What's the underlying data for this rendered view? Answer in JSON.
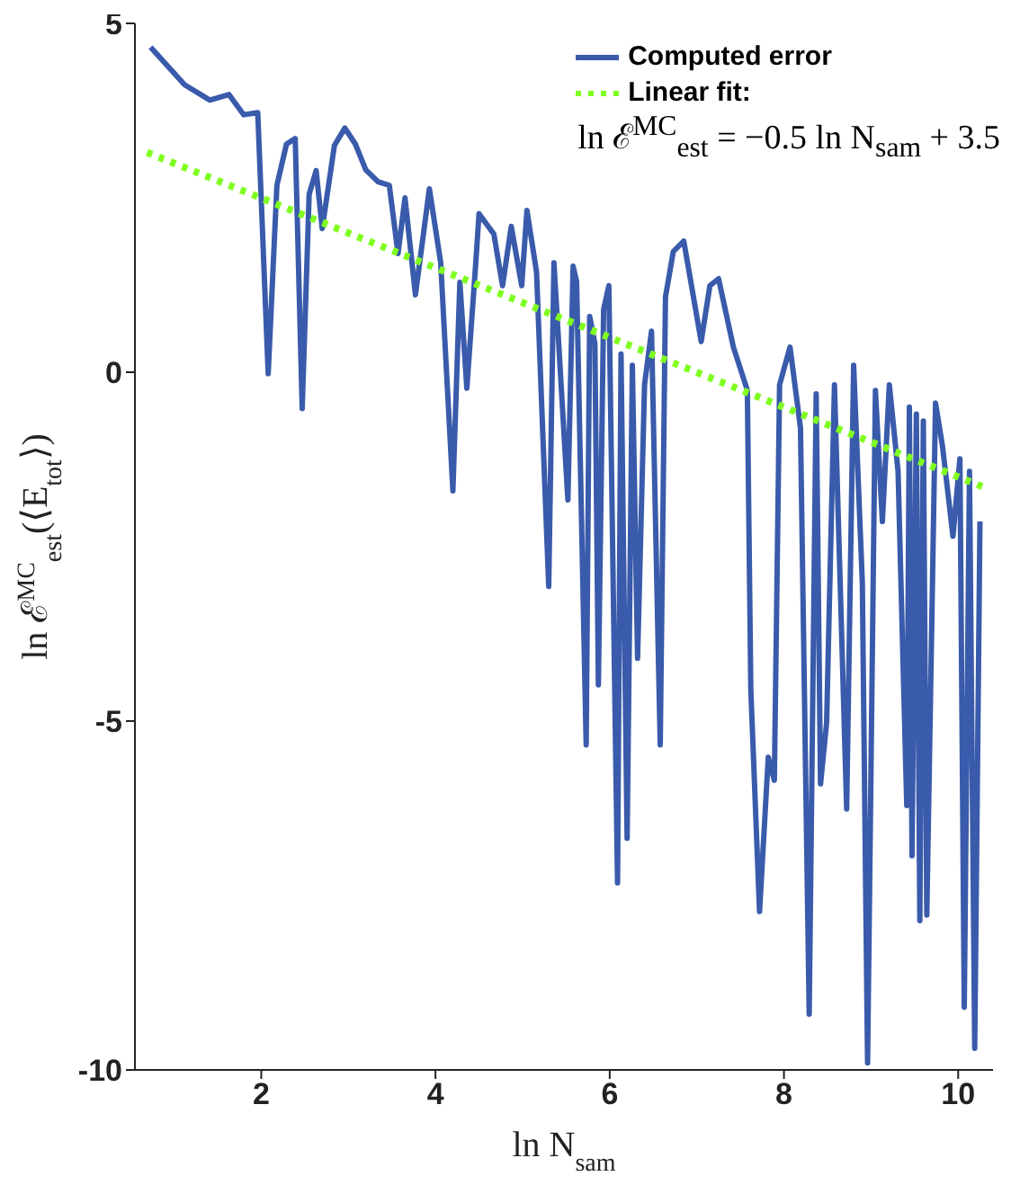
{
  "chart_data": {
    "type": "line",
    "xlabel": "ln N$_{sam}$",
    "ylabel": "ln ℰ$^{MC}$$_{est}$(⟨E$_{tot}$⟩)",
    "xlim": [
      0.55,
      10.4
    ],
    "xticks": [
      2,
      4,
      6,
      8,
      10
    ],
    "ylim": [
      -10,
      5
    ],
    "yticks": [
      -10,
      -5,
      0,
      5
    ],
    "legend": "top right",
    "marker": "none",
    "annotations": [
      "ln ℰ$^{MC}$$_{est}$ = −0.5 ln N$_{sam}$ + 3.5"
    ],
    "series": [
      {
        "name": "Computed error",
        "color": "#3a5bab",
        "line_style": "solid",
        "x": [
          0.73,
          1.12,
          1.41,
          1.63,
          1.8,
          1.96,
          2.08,
          2.18,
          2.29,
          2.39,
          2.47,
          2.55,
          2.63,
          2.7,
          2.8,
          2.84,
          2.96,
          3.08,
          3.2,
          3.34,
          3.47,
          3.57,
          3.65,
          3.77,
          3.93,
          4.06,
          4.2,
          4.28,
          4.36,
          4.46,
          4.5,
          4.67,
          4.77,
          4.87,
          4.99,
          5.05,
          5.16,
          5.3,
          5.36,
          5.52,
          5.58,
          5.62,
          5.73,
          5.77,
          5.83,
          5.87,
          5.93,
          5.99,
          6.09,
          6.13,
          6.2,
          6.26,
          6.32,
          6.4,
          6.48,
          6.58,
          6.64,
          6.73,
          6.85,
          7.05,
          7.15,
          7.25,
          7.42,
          7.58,
          7.62,
          7.72,
          7.82,
          7.89,
          7.95,
          8.07,
          8.19,
          8.29,
          8.37,
          8.42,
          8.49,
          8.58,
          8.72,
          8.8,
          8.9,
          8.96,
          9.05,
          9.13,
          9.21,
          9.31,
          9.41,
          9.44,
          9.47,
          9.52,
          9.56,
          9.6,
          9.64,
          9.74,
          9.82,
          9.94,
          10.02,
          10.07,
          10.13,
          10.19,
          10.25
        ],
        "values": [
          4.66,
          4.12,
          3.9,
          3.98,
          3.69,
          3.72,
          -0.02,
          2.68,
          3.27,
          3.35,
          -0.52,
          2.55,
          2.89,
          2.06,
          2.91,
          3.25,
          3.5,
          3.27,
          2.9,
          2.73,
          2.68,
          1.7,
          2.5,
          1.11,
          2.63,
          1.57,
          -1.7,
          1.29,
          -0.23,
          1.52,
          2.27,
          1.98,
          1.24,
          2.09,
          1.24,
          2.32,
          1.44,
          -3.07,
          1.57,
          -1.83,
          1.52,
          1.3,
          -5.34,
          0.8,
          0.41,
          -4.48,
          0.9,
          1.24,
          -7.32,
          0.26,
          -6.68,
          0.1,
          -4.1,
          -0.18,
          0.59,
          -5.34,
          1.08,
          1.73,
          1.88,
          0.44,
          1.24,
          1.34,
          0.36,
          -0.26,
          -4.56,
          -7.73,
          -5.52,
          -5.85,
          -0.18,
          0.36,
          -0.8,
          -9.2,
          -0.31,
          -5.9,
          -5.02,
          -0.18,
          -6.26,
          0.1,
          -3.02,
          -9.9,
          -0.26,
          -2.14,
          -0.18,
          -1.42,
          -6.21,
          -0.5,
          -6.93,
          -0.6,
          -7.86,
          -0.7,
          -7.78,
          -0.44,
          -1.06,
          -2.35,
          -1.24,
          -9.1,
          -1.42,
          -9.69,
          -2.14
        ]
      },
      {
        "name": "Linear fit:",
        "color": "#7fff1f",
        "line_style": "dotted",
        "x": [
          0.69,
          10.3
        ],
        "values": [
          3.15,
          -1.65
        ]
      }
    ]
  }
}
